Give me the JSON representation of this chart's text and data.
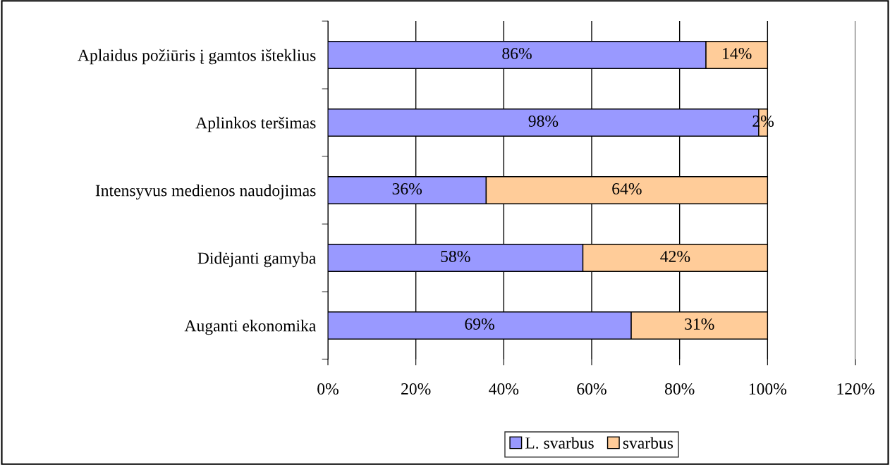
{
  "chart_data": {
    "type": "bar",
    "orientation": "horizontal",
    "stacked": true,
    "categories": [
      "Aplaidus požiūris į gamtos išteklius",
      "Aplinkos teršimas",
      "Intensyvus medienos naudojimas",
      "Didėjanti gamyba",
      "Auganti ekonomika"
    ],
    "series": [
      {
        "name": "L. svarbus",
        "color": "#9999ff",
        "values": [
          86,
          98,
          36,
          58,
          69
        ],
        "value_labels": [
          "86%",
          "98%",
          "36%",
          "58%",
          "69%"
        ]
      },
      {
        "name": "svarbus",
        "color": "#ffcc99",
        "values": [
          14,
          2,
          64,
          42,
          31
        ],
        "value_labels": [
          "14%",
          "2%",
          "64%",
          "42%",
          "31%"
        ]
      }
    ],
    "xlim": [
      0,
      120
    ],
    "xticks": [
      {
        "value": 0,
        "label": "0%"
      },
      {
        "value": 20,
        "label": "20%"
      },
      {
        "value": 40,
        "label": "40%"
      },
      {
        "value": 60,
        "label": "60%"
      },
      {
        "value": 80,
        "label": "80%"
      },
      {
        "value": 100,
        "label": "100%"
      },
      {
        "value": 120,
        "label": "120%"
      }
    ],
    "grid": "x",
    "legend": "bottom"
  }
}
